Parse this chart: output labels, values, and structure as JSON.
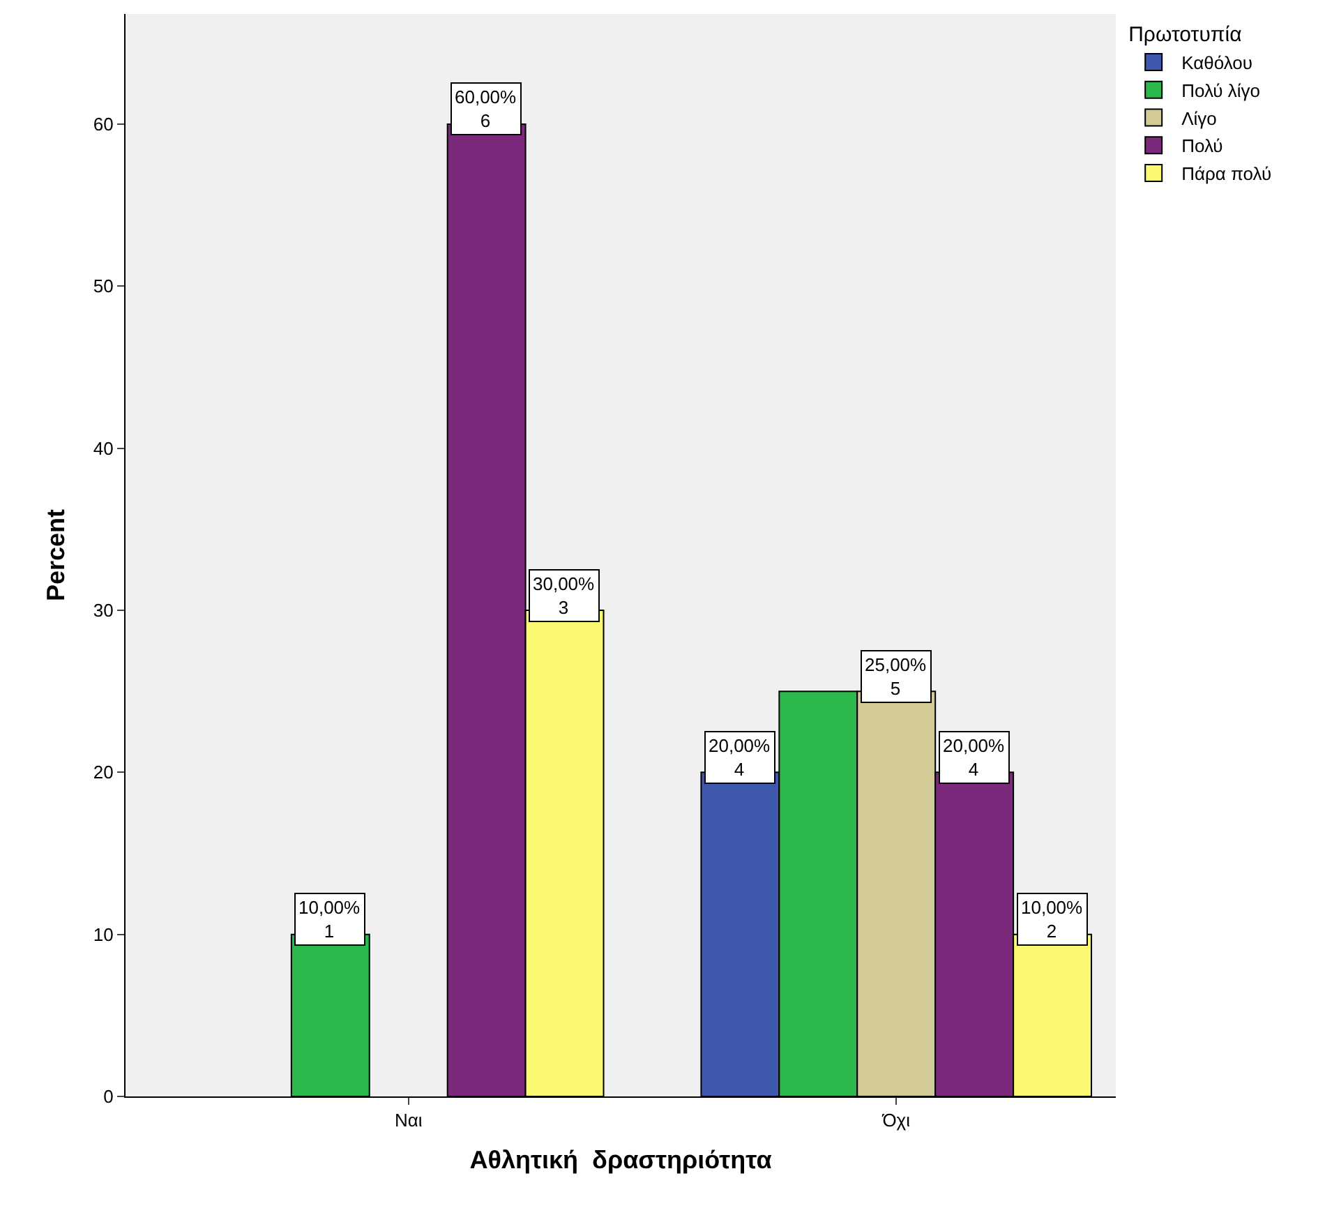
{
  "chart_data": {
    "type": "bar",
    "xlabel": "Αθλητική  δραστηριότητα",
    "ylabel": "Percent",
    "legend_title": "Πρωτοτυπία",
    "categories": [
      "Ναι",
      "Όχι"
    ],
    "series": [
      {
        "name": "Καθόλου",
        "color": "#3e58ac",
        "values": [
          null,
          20
        ],
        "value_labels": [
          null,
          "20,00%\n4"
        ]
      },
      {
        "name": "Πολύ λίγο",
        "color": "#2db84d",
        "values": [
          10,
          25
        ],
        "value_labels": [
          "10,00%\n1",
          null
        ]
      },
      {
        "name": "Λίγο",
        "color": "#d2cb98",
        "values": [
          null,
          25
        ],
        "value_labels": [
          null,
          "25,00%\n5"
        ]
      },
      {
        "name": "Πολύ",
        "color": "#7b2a7b",
        "values": [
          60,
          20
        ],
        "value_labels": [
          "60,00%\n6",
          "20,00%\n4"
        ]
      },
      {
        "name": "Πάρα πολύ",
        "color": "#fbf873",
        "values": [
          30,
          10
        ],
        "value_labels": [
          "30,00%\n3",
          "10,00%\n2"
        ]
      }
    ],
    "ylim": [
      0,
      66.8
    ],
    "yticks": [
      0,
      10,
      20,
      30,
      40,
      50,
      60
    ],
    "grid": false,
    "legend": "top right"
  }
}
